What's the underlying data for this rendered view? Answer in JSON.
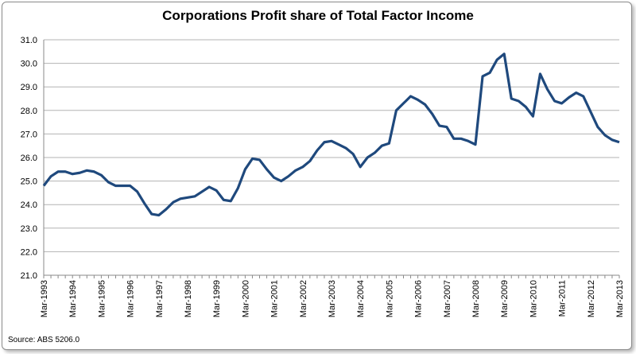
{
  "chart_data": {
    "type": "line",
    "title": "Corporations Profit share of Total Factor Income",
    "source": "Source: ABS 5206.0",
    "xlabel": "",
    "ylabel": "",
    "ylim": [
      21.0,
      31.0
    ],
    "yticks": [
      "21.0",
      "22.0",
      "23.0",
      "24.0",
      "25.0",
      "26.0",
      "27.0",
      "28.0",
      "29.0",
      "30.0",
      "31.0"
    ],
    "xtick_labels": [
      "Mar-1993",
      "Mar-1994",
      "Mar-1995",
      "Mar-1996",
      "Mar-1997",
      "Mar-1998",
      "Mar-1999",
      "Mar-2000",
      "Mar-2001",
      "Mar-2002",
      "Mar-2003",
      "Mar-2004",
      "Mar-2005",
      "Mar-2006",
      "Mar-2007",
      "Mar-2008",
      "Mar-2009",
      "Mar-2010",
      "Mar-2011",
      "Mar-2012",
      "Mar-2013"
    ],
    "grid": true,
    "legend": "none",
    "series": [
      {
        "name": "Profit share",
        "color": "#1f497d",
        "frequency": "quarterly",
        "start": "Mar-1993",
        "values": [
          24.8,
          25.2,
          25.4,
          25.4,
          25.3,
          25.35,
          25.45,
          25.4,
          25.25,
          24.95,
          24.8,
          24.8,
          24.8,
          24.55,
          24.05,
          23.6,
          23.55,
          23.8,
          24.1,
          24.25,
          24.3,
          24.35,
          24.55,
          24.75,
          24.6,
          24.2,
          24.15,
          24.7,
          25.5,
          25.95,
          25.9,
          25.5,
          25.15,
          25.0,
          25.2,
          25.45,
          25.6,
          25.85,
          26.3,
          26.65,
          26.7,
          26.55,
          26.4,
          26.15,
          25.6,
          26.0,
          26.2,
          26.5,
          26.6,
          28.0,
          28.3,
          28.6,
          28.45,
          28.25,
          27.85,
          27.35,
          27.3,
          26.8,
          26.8,
          26.7,
          26.55,
          29.45,
          29.6,
          30.15,
          30.4,
          28.5,
          28.4,
          28.15,
          27.75,
          29.55,
          28.9,
          28.4,
          28.3,
          28.55,
          28.75,
          28.6,
          27.95,
          27.3,
          26.95,
          26.75,
          26.65
        ]
      }
    ]
  }
}
